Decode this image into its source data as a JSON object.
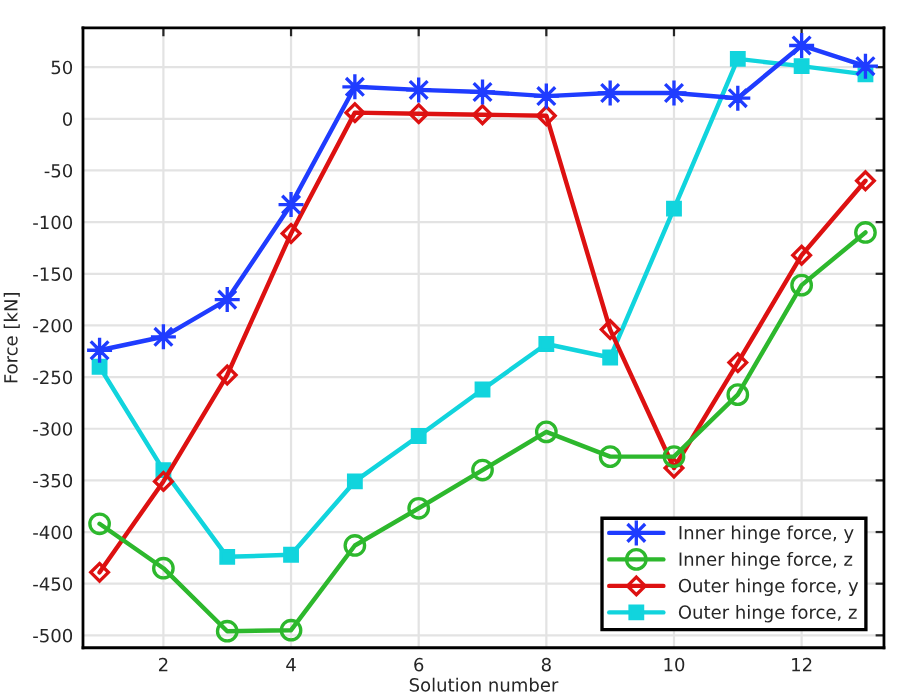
{
  "chart_data": {
    "type": "line",
    "xlabel": "Solution number",
    "ylabel": "Force [kN]",
    "x": [
      1,
      2,
      3,
      4,
      5,
      6,
      7,
      8,
      9,
      10,
      11,
      12,
      13
    ],
    "xlim": [
      0.74,
      13.29
    ],
    "xticks": [
      2,
      4,
      6,
      8,
      10,
      12
    ],
    "ylim": [
      -512,
      88
    ],
    "yticks": [
      -500,
      -450,
      -400,
      -350,
      -300,
      -250,
      -200,
      -150,
      -100,
      -50,
      0,
      50
    ],
    "grid": true,
    "legend": "bottom right",
    "line_style": "solid",
    "series": [
      {
        "name": "Inner hinge force, y",
        "color": "#1f3cff",
        "marker": "star",
        "values": [
          -224,
          -211,
          -175,
          -83,
          31,
          28,
          26,
          22,
          25,
          25,
          20,
          71,
          51
        ]
      },
      {
        "name": "Inner hinge force, z",
        "color": "#2db82d",
        "marker": "circle",
        "values": [
          -392,
          -435,
          -496,
          -495,
          -413,
          -377,
          -340,
          -303,
          -327,
          -327,
          -267,
          -161,
          -110
        ]
      },
      {
        "name": "Outer hinge force, y",
        "color": "#dd1111",
        "marker": "diamond",
        "values": [
          -439,
          -351,
          -248,
          -111,
          6,
          5,
          4,
          3,
          -204,
          -338,
          -236,
          -132,
          -60
        ]
      },
      {
        "name": "Outer hinge force, z",
        "color": "#11d4dd",
        "marker": "square",
        "values": [
          -240,
          -340,
          -424,
          -422,
          -351,
          -307,
          -262,
          -218,
          -231,
          -87,
          58,
          51,
          43
        ]
      }
    ]
  }
}
